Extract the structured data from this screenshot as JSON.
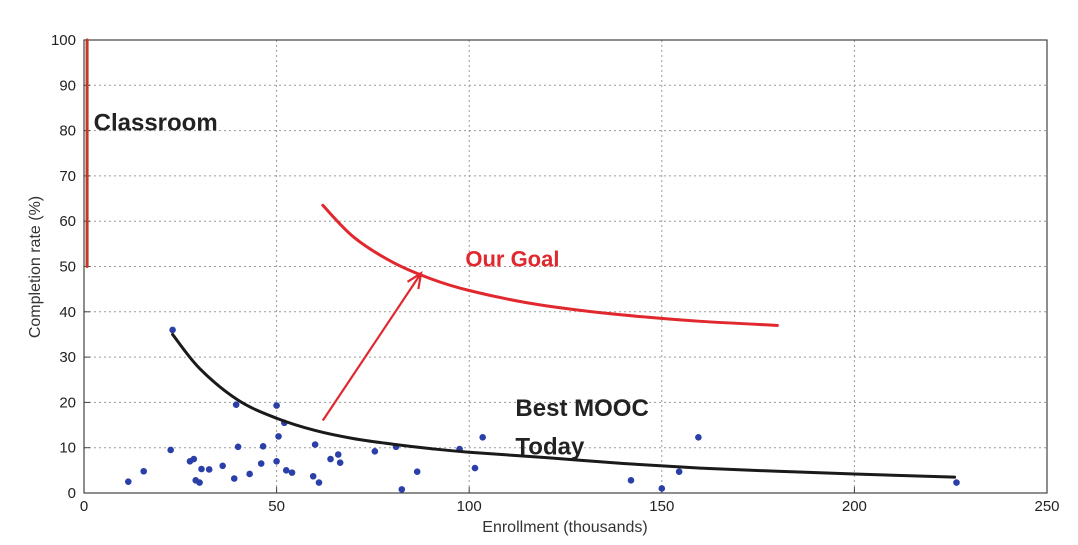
{
  "chart_data": {
    "type": "scatter",
    "xlabel": "Enrollment (thousands)",
    "ylabel": "Completion rate (%)",
    "xlim": [
      0,
      250
    ],
    "ylim": [
      0,
      100
    ],
    "x_ticks": [
      0,
      50,
      100,
      150,
      200,
      250
    ],
    "y_ticks": [
      0,
      10,
      20,
      30,
      40,
      50,
      60,
      70,
      80,
      90,
      100
    ],
    "grid": true,
    "grid_style": "dotted",
    "series": [
      {
        "kind": "points",
        "color": "#2b3fa8",
        "points": [
          [
            11.5,
            2.5
          ],
          [
            15.5,
            4.8
          ],
          [
            22.5,
            9.5
          ],
          [
            23,
            36
          ],
          [
            27.5,
            7
          ],
          [
            28.5,
            7.5
          ],
          [
            29,
            2.8
          ],
          [
            30,
            2.3
          ],
          [
            30.5,
            5.3
          ],
          [
            32.5,
            5.2
          ],
          [
            36,
            6
          ],
          [
            39,
            3.2
          ],
          [
            39.5,
            19.5
          ],
          [
            40,
            10.2
          ],
          [
            43,
            4.2
          ],
          [
            46,
            6.5
          ],
          [
            46.5,
            10.3
          ],
          [
            50,
            7
          ],
          [
            50,
            19.3
          ],
          [
            50.5,
            12.5
          ],
          [
            52,
            15.5
          ],
          [
            52.5,
            5
          ],
          [
            54,
            4.5
          ],
          [
            59.5,
            3.7
          ],
          [
            60,
            10.7
          ],
          [
            61,
            2.3
          ],
          [
            64,
            7.5
          ],
          [
            66,
            8.5
          ],
          [
            66.5,
            6.7
          ],
          [
            75.5,
            9.2
          ],
          [
            81,
            10.2
          ],
          [
            82.5,
            0.8
          ],
          [
            86.5,
            4.7
          ],
          [
            97.5,
            9.7
          ],
          [
            101.5,
            5.5
          ],
          [
            103.5,
            12.3
          ],
          [
            142,
            2.8
          ],
          [
            150,
            1
          ],
          [
            154.5,
            4.7
          ],
          [
            159.5,
            12.3
          ],
          [
            226.5,
            2.3
          ]
        ]
      },
      {
        "kind": "curve",
        "color": "#1a1a1a",
        "points": [
          [
            23,
            35
          ],
          [
            30,
            27.5
          ],
          [
            40,
            20.5
          ],
          [
            50,
            16.5
          ],
          [
            60,
            13.8
          ],
          [
            70,
            12
          ],
          [
            80,
            10.8
          ],
          [
            90,
            9.8
          ],
          [
            100,
            9
          ],
          [
            120,
            7.8
          ],
          [
            140,
            6.5
          ],
          [
            160,
            5.5
          ],
          [
            180,
            4.8
          ],
          [
            200,
            4.2
          ],
          [
            226,
            3.5
          ]
        ]
      },
      {
        "kind": "curve",
        "color": "#e0282e",
        "points": [
          [
            62,
            63.5
          ],
          [
            70,
            56.5
          ],
          [
            80,
            51
          ],
          [
            90,
            47.3
          ],
          [
            100,
            44.7
          ],
          [
            115,
            42
          ],
          [
            130,
            40.2
          ],
          [
            145,
            38.9
          ],
          [
            160,
            37.9
          ],
          [
            180,
            37
          ]
        ]
      },
      {
        "kind": "segment",
        "color": "#c0392b",
        "points": [
          [
            0.8,
            50
          ],
          [
            0.8,
            100
          ]
        ]
      },
      {
        "kind": "arrow",
        "color": "#e0282e",
        "points": [
          [
            62,
            16
          ],
          [
            87.5,
            48.5
          ]
        ]
      }
    ],
    "annotations": [
      {
        "text": "Classroom",
        "x": 2.5,
        "y": 80,
        "color": "#222222"
      },
      {
        "text": "Our Goal",
        "x": 99,
        "y": 50,
        "color": "#e0282e"
      },
      {
        "text": "Best MOOC",
        "x": 112,
        "y": 17,
        "color": "#222222"
      },
      {
        "text": "Today",
        "x": 112,
        "y": 8.5,
        "color": "#222222"
      }
    ]
  }
}
